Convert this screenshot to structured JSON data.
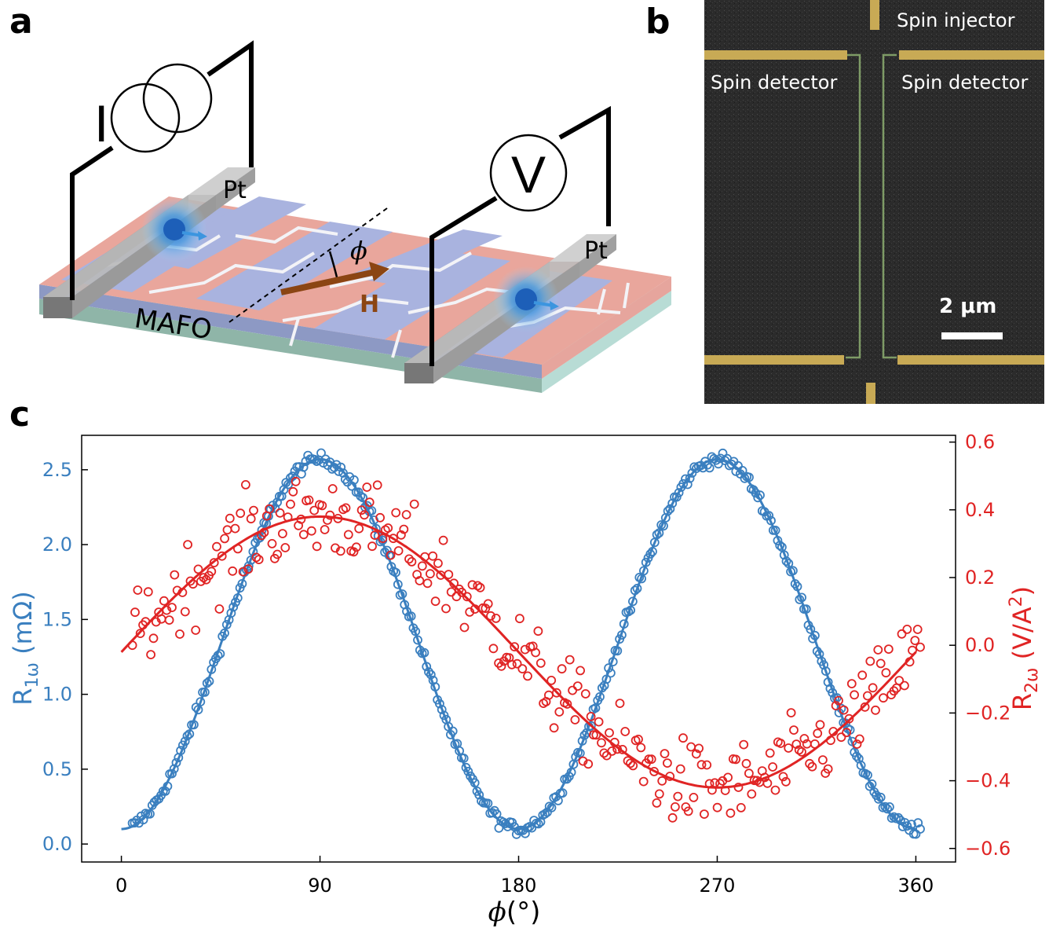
{
  "panels": {
    "a": "a",
    "b": "b",
    "c": "c"
  },
  "schematic": {
    "current_source_label": "I",
    "voltmeter_label": "V",
    "pt_left_label": "Pt",
    "pt_right_label": "Pt",
    "substrate_label": "MAFO",
    "angle_label": "ϕ",
    "field_label": "H"
  },
  "micrograph": {
    "injector_label": "Spin injector",
    "detector_left_label": "Spin detector",
    "detector_right_label": "Spin detector",
    "scale_bar_label": "2 μm"
  },
  "chart_data": {
    "type": "scatter",
    "title": "",
    "xlabel_prefix": "ϕ",
    "xlabel_unit": "(°)",
    "ylabel_left": {
      "main": "R",
      "sub": "1ω",
      "unit": " (mΩ)"
    },
    "ylabel_right": {
      "main": "R",
      "sub": "2ω",
      "unit": " (V/A",
      "sup": "2",
      "close": ")"
    },
    "xlim": [
      -18,
      378
    ],
    "ylim_left": [
      -0.12,
      2.73
    ],
    "ylim_right": [
      -0.64,
      0.62
    ],
    "x_ticks": [
      0,
      90,
      180,
      270,
      360
    ],
    "x_tick_labels": [
      "0",
      "90",
      "180",
      "270",
      "360"
    ],
    "y_left_ticks": [
      0.0,
      0.5,
      1.0,
      1.5,
      2.0,
      2.5
    ],
    "y_left_tick_labels": [
      "0.0",
      "0.5",
      "1.0",
      "1.5",
      "2.0",
      "2.5"
    ],
    "y_right_ticks": [
      -0.6,
      -0.4,
      -0.2,
      0.0,
      0.2,
      0.4,
      0.6
    ],
    "y_right_tick_labels": [
      "−0.6",
      "−0.4",
      "−0.2",
      "0.0",
      "0.2",
      "0.4",
      "0.6"
    ],
    "series": [
      {
        "name": "R1ω data",
        "axis": "left",
        "color": "#3a7fbf",
        "marker": "open-circle",
        "model": "offset + amplitude*sin²(ϕ)",
        "offset": 0.1,
        "amplitude": 2.47,
        "x_range": [
          5,
          362
        ],
        "n_points": 360,
        "noise": 0.03
      },
      {
        "name": "R1ω fit",
        "axis": "left",
        "color": "#3a7fbf",
        "style": "line",
        "model": "offset + amplitude*sin²(ϕ)",
        "offset": 0.1,
        "amplitude": 2.47,
        "x_range": [
          0,
          360
        ]
      },
      {
        "name": "R2ω data",
        "axis": "right",
        "color": "#e02424",
        "marker": "open-circle",
        "model": "offset + amplitude*sin(ϕ)",
        "offset": -0.02,
        "amplitude": 0.4,
        "x_range": [
          5,
          362
        ],
        "n_points": 300,
        "noise": 0.09
      },
      {
        "name": "R2ω fit",
        "axis": "right",
        "color": "#e02424",
        "style": "line",
        "model": "offset + amplitude*sin(ϕ)",
        "offset": -0.02,
        "amplitude": 0.4,
        "x_range": [
          0,
          360
        ]
      }
    ]
  }
}
